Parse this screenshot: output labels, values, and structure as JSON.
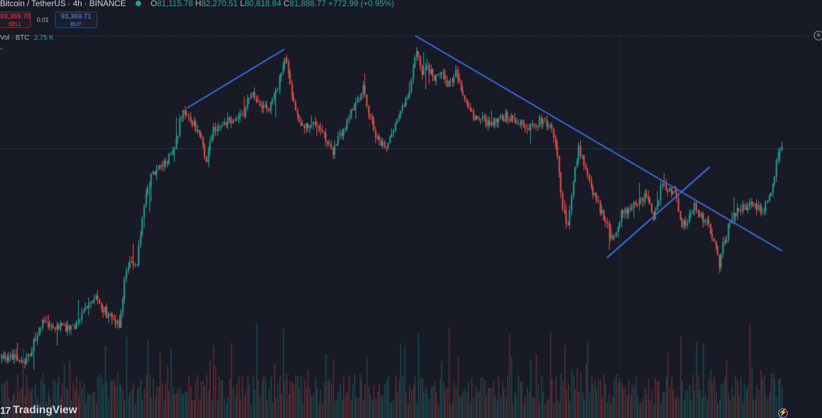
{
  "legend": {
    "symbol": "Bitcoin / TetherUS · 4h · BINANCE",
    "open_key": "O",
    "open": "81,115.78",
    "high_key": "H",
    "high": "82,270.51",
    "low_key": "L",
    "low": "80,818.84",
    "close_key": "C",
    "close": "81,888.77",
    "change": "+772.99 (+0.95%)",
    "status_icon": "market-open-dot"
  },
  "trade": {
    "sell_price": "93,369.70",
    "sell_label": "SELL",
    "spread": "0.01",
    "buy_price": "93,369.71",
    "buy_label": "BUY"
  },
  "volume": {
    "label": "Vol · BTC",
    "value": "2.75 K"
  },
  "branding": {
    "logo_mark": "17",
    "logo_text": "TradingView"
  },
  "icons": {
    "add": "plus-circle-icon",
    "bolt": "lightning-icon",
    "collapse": "chevron-up-icon"
  },
  "colors": {
    "background": "#181b25",
    "up": "#26a69a",
    "down": "#ef5350",
    "trendline": "#3d6ee8",
    "crosshair": "#787b86"
  },
  "chart_data": {
    "type": "candlestick",
    "price_path_x": [
      0,
      20,
      35,
      45,
      60,
      75,
      95,
      110,
      120,
      140,
      150,
      160,
      175,
      180,
      185,
      200,
      210,
      220,
      230,
      240,
      255,
      265,
      275,
      285,
      295,
      300,
      310,
      320,
      335,
      345,
      355,
      365,
      370,
      385,
      395,
      405,
      415,
      420,
      430,
      440,
      455,
      465,
      475,
      485,
      495,
      505,
      515,
      530,
      545,
      555,
      565,
      570,
      580,
      590,
      600,
      607,
      615,
      625,
      635,
      645,
      655,
      665,
      675,
      685,
      700,
      720,
      740,
      760,
      775,
      790,
      800,
      810,
      815,
      820,
      828,
      835,
      845,
      855,
      865,
      875,
      885,
      895,
      905,
      915,
      925,
      935,
      945,
      955,
      965,
      975,
      985,
      995,
      1005,
      1015,
      1025,
      1035,
      1045,
      1050,
      1055,
      1060,
      1065,
      1075,
      1090,
      1105,
      1115,
      1120,
      1125,
      1130,
      1135,
      1140
    ],
    "price_path_y": [
      525,
      520,
      535,
      510,
      470,
      475,
      480,
      475,
      455,
      430,
      450,
      465,
      475,
      420,
      390,
      380,
      300,
      260,
      245,
      240,
      215,
      165,
      170,
      185,
      200,
      235,
      190,
      185,
      175,
      180,
      165,
      140,
      135,
      160,
      155,
      125,
      80,
      100,
      160,
      190,
      175,
      180,
      205,
      220,
      200,
      180,
      160,
      130,
      190,
      210,
      215,
      200,
      170,
      150,
      120,
      70,
      110,
      100,
      115,
      110,
      125,
      105,
      140,
      165,
      175,
      180,
      170,
      180,
      185,
      175,
      180,
      205,
      250,
      300,
      340,
      270,
      215,
      245,
      280,
      305,
      330,
      350,
      315,
      310,
      300,
      290,
      285,
      320,
      270,
      275,
      280,
      330,
      320,
      300,
      320,
      330,
      360,
      395,
      360,
      345,
      320,
      310,
      300,
      305,
      310,
      295,
      280,
      265,
      220,
      215
    ],
    "trendlines": [
      {
        "name": "support-rise",
        "x1": 273,
        "y1": 158,
        "x2": 415,
        "y2": 72
      },
      {
        "name": "descending-resistance",
        "x1": 606,
        "y1": 52,
        "x2": 1142,
        "y2": 367
      },
      {
        "name": "rising-support",
        "x1": 886,
        "y1": 377,
        "x2": 1036,
        "y2": 244
      }
    ],
    "crosshair": {
      "x": 904,
      "y": 52
    },
    "reference_line_y": 217
  }
}
